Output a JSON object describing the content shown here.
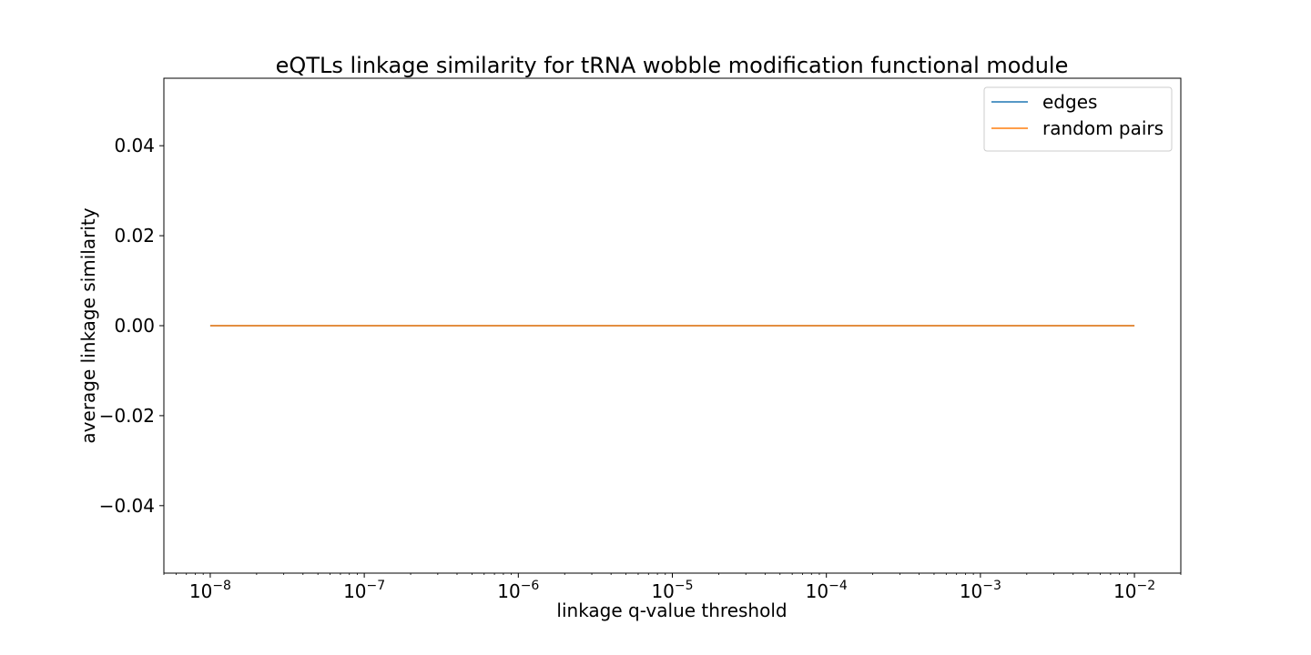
{
  "chart_data": {
    "type": "line",
    "title": "eQTLs linkage similarity for tRNA wobble modification functional module",
    "xlabel": "linkage q-value threshold",
    "ylabel": "average linkage similarity",
    "x_scale": "log",
    "x": [
      1e-08,
      1e-07,
      1e-06,
      1e-05,
      0.0001,
      0.001,
      0.01
    ],
    "xlim": [
      5e-09,
      0.02
    ],
    "ylim": [
      -0.055,
      0.055
    ],
    "x_ticks": [
      {
        "value": 1e-08,
        "base": "10",
        "exp": "−8"
      },
      {
        "value": 1e-07,
        "base": "10",
        "exp": "−7"
      },
      {
        "value": 1e-06,
        "base": "10",
        "exp": "−6"
      },
      {
        "value": 1e-05,
        "base": "10",
        "exp": "−5"
      },
      {
        "value": 0.0001,
        "base": "10",
        "exp": "−4"
      },
      {
        "value": 0.001,
        "base": "10",
        "exp": "−3"
      },
      {
        "value": 0.01,
        "base": "10",
        "exp": "−2"
      }
    ],
    "y_ticks": [
      {
        "value": 0.04,
        "label": "0.04"
      },
      {
        "value": 0.02,
        "label": "0.02"
      },
      {
        "value": 0.0,
        "label": "0.00"
      },
      {
        "value": -0.02,
        "label": "−0.02"
      },
      {
        "value": -0.04,
        "label": "−0.04"
      }
    ],
    "series": [
      {
        "name": "edges",
        "color": "#1f77b4",
        "values": [
          0,
          0,
          0,
          0,
          0,
          0,
          0
        ]
      },
      {
        "name": "random pairs",
        "color": "#ff7f0e",
        "values": [
          0,
          0,
          0,
          0,
          0,
          0,
          0
        ]
      }
    ],
    "grid": false,
    "legend_position": "top-right"
  }
}
